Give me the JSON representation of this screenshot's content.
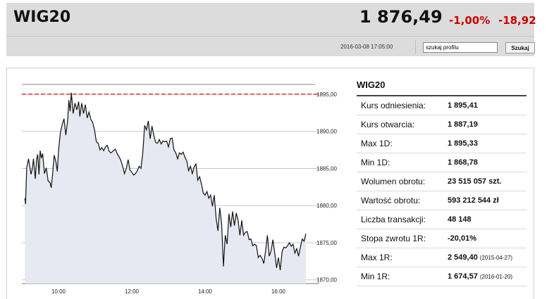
{
  "header": {
    "title": "WIG20",
    "price": "1 876,49",
    "change_pct": "-1,00%",
    "change_abs": "-18,92",
    "timestamp": "2016-03-08 17:05:00",
    "search_value": "szukaj profilu",
    "search_button": "Szukaj"
  },
  "stats": {
    "title": "WIG20",
    "rows": [
      {
        "label": "Kurs odniesienia:",
        "value": "1 895,41",
        "date": ""
      },
      {
        "label": "Kurs otwarcia:",
        "value": "1 887,19",
        "date": ""
      },
      {
        "label": "Max 1D:",
        "value": "1 895,33",
        "date": ""
      },
      {
        "label": "Min 1D:",
        "value": "1 868,78",
        "date": ""
      },
      {
        "label": "Wolumen obrotu:",
        "value": "23 515 057 szt.",
        "date": ""
      },
      {
        "label": "Wartość obrotu:",
        "value": "593 212 544 zł",
        "date": ""
      },
      {
        "label": "Liczba transakcji:",
        "value": "48 148",
        "date": ""
      },
      {
        "label": "Stopa zwrotu 1R:",
        "value": "-20,01%",
        "date": ""
      },
      {
        "label": "Max 1R:",
        "value": "2 549,40",
        "date": "(2015-04-27)"
      },
      {
        "label": "Min 1R:",
        "value": "1 674,57",
        "date": "(2016-01-20)"
      }
    ]
  },
  "chart_data": {
    "type": "area",
    "reference_line": 1895.0,
    "reference_color": "#e53030",
    "line_color": "#111111",
    "fill_color": "#e6e9f2",
    "y_ticks": [
      "1895,00",
      "1890,00",
      "1885,00",
      "1880,00",
      "1875,00",
      "1870,00"
    ],
    "y_tick_values": [
      1895,
      1890,
      1885,
      1880,
      1875,
      1870
    ],
    "x_ticks": [
      "10:00",
      "12:00",
      "14:00",
      "16:00"
    ],
    "x_tick_values": [
      600,
      720,
      840,
      960
    ],
    "ylim": [
      1869.5,
      1898.5
    ],
    "xlim": [
      540,
      1020
    ],
    "grid": true,
    "x": [
      545,
      546,
      548,
      551,
      555,
      557,
      559,
      562,
      564,
      566,
      568,
      570,
      572,
      574,
      577,
      580,
      583,
      586,
      588,
      590,
      593,
      596,
      598,
      600,
      603,
      606,
      609,
      612,
      615,
      617,
      619,
      621,
      624,
      627,
      630,
      633,
      635,
      638,
      641,
      644,
      647,
      650,
      653,
      656,
      659,
      662,
      665,
      668,
      671,
      674,
      677,
      680,
      683,
      686,
      690,
      693,
      696,
      699,
      702,
      705,
      708,
      711,
      714,
      717,
      720,
      723,
      726,
      729,
      732,
      735,
      738,
      741,
      744,
      747,
      750,
      753,
      756,
      759,
      762,
      765,
      768,
      771,
      774,
      777,
      780,
      783,
      786,
      789,
      792,
      795,
      798,
      801,
      804,
      807,
      810,
      813,
      816,
      819,
      822,
      825,
      828,
      831,
      834,
      837,
      840,
      843,
      846,
      849,
      852,
      855,
      858,
      861,
      864,
      867,
      870,
      873,
      876,
      879,
      882,
      885,
      888,
      891,
      894,
      897,
      900,
      903,
      906,
      909,
      912,
      915,
      918,
      921,
      924,
      927,
      930,
      933,
      936,
      939,
      942,
      945,
      948,
      951,
      954,
      957,
      960,
      963,
      966,
      969,
      972,
      975,
      978,
      981,
      984,
      987,
      990,
      993,
      996,
      999,
      1002,
      1005
    ],
    "y": [
      1881.0,
      1880.2,
      1885.1,
      1886.3,
      1884.2,
      1884.9,
      1886.3,
      1883.6,
      1886.1,
      1886.9,
      1884.2,
      1887.4,
      1886.4,
      1887.0,
      1884.3,
      1885.1,
      1883.3,
      1883.1,
      1882.4,
      1883.9,
      1886.8,
      1885.8,
      1884.6,
      1887.3,
      1889.8,
      1890.9,
      1891.7,
      1889.5,
      1891.5,
      1894.2,
      1892.7,
      1895.2,
      1892.4,
      1893.8,
      1892.9,
      1894.0,
      1892.0,
      1893.8,
      1892.4,
      1893.6,
      1891.8,
      1892.6,
      1891.6,
      1891.2,
      1890.2,
      1888.6,
      1888.4,
      1887.5,
      1887.8,
      1887.4,
      1887.9,
      1888.1,
      1887.3,
      1887.1,
      1887.4,
      1887.6,
      1887.0,
      1886.6,
      1886.1,
      1885.3,
      1884.3,
      1885.0,
      1886.2,
      1884.8,
      1884.5,
      1884.1,
      1884.3,
      1884.7,
      1885.3,
      1885.0,
      1887.1,
      1890.8,
      1890.2,
      1891.4,
      1889.0,
      1890.7,
      1889.5,
      1888.5,
      1888.4,
      1888.9,
      1888.3,
      1888.7,
      1888.6,
      1888.7,
      1887.9,
      1889.0,
      1889.1,
      1887.5,
      1887.1,
      1886.3,
      1887.1,
      1886.9,
      1887.2,
      1886.5,
      1886.0,
      1884.7,
      1885.3,
      1884.3,
      1885.2,
      1885.6,
      1883.4,
      1883.9,
      1882.9,
      1881.7,
      1881.4,
      1881.9,
      1881.0,
      1881.4,
      1879.9,
      1881.4,
      1878.3,
      1876.6,
      1879.7,
      1877.6,
      1871.8,
      1876.0,
      1874.8,
      1878.9,
      1877.1,
      1879.2,
      1877.3,
      1879.0,
      1878.0,
      1876.0,
      1878.0,
      1876.0,
      1876.4,
      1876.5,
      1875.4,
      1875.5,
      1874.6,
      1874.8,
      1874.6,
      1873.0,
      1873.3,
      1872.9,
      1872.2,
      1873.9,
      1876.0,
      1873.2,
      1873.9,
      1875.4,
      1873.6,
      1871.6,
      1873.0,
      1871.3,
      1873.8,
      1874.4,
      1874.3,
      1874.6,
      1875.0,
      1874.5,
      1874.8,
      1873.6,
      1874.2,
      1873.2,
      1874.4,
      1875.5,
      1875.2,
      1876.2
    ]
  }
}
